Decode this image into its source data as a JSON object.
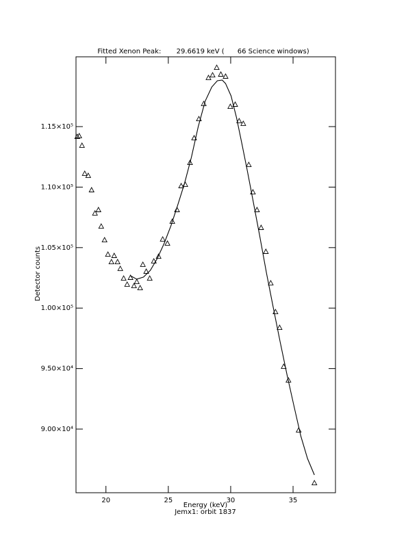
{
  "chart_data": {
    "type": "scatter",
    "title": "Fitted Xenon Peak:       29.6619 keV (      66 Science windows)",
    "x_label": "Energy (keV)",
    "subtitle": "Jemx1: orbit 1837",
    "y_label": "Detector counts",
    "xlim": [
      17.6,
      38.4
    ],
    "ylim": [
      84740,
      120770
    ],
    "xticks": [
      20,
      25,
      30,
      35
    ],
    "yticks": [
      {
        "value": 90000,
        "label": "9.00×10⁴"
      },
      {
        "value": 95000,
        "label": "9.50×10⁴"
      },
      {
        "value": 100000,
        "label": "1.00×10⁵"
      },
      {
        "value": 105000,
        "label": "1.05×10⁵"
      },
      {
        "value": 110000,
        "label": "1.10×10⁵"
      },
      {
        "value": 115000,
        "label": "1.15×10⁵"
      }
    ],
    "series": [
      {
        "type": "scatter",
        "marker": "triangle",
        "color": "#000000",
        "x": [
          17.7,
          17.86,
          18.08,
          18.3,
          18.58,
          18.85,
          19.12,
          19.4,
          19.62,
          19.89,
          20.16,
          20.44,
          20.66,
          20.93,
          21.15,
          21.42,
          21.7,
          21.97,
          22.25,
          22.47,
          22.74,
          22.96,
          23.23,
          23.51,
          23.84,
          24.22,
          24.55,
          24.93,
          25.32,
          25.7,
          26.03,
          26.36,
          26.74,
          27.07,
          27.45,
          27.84,
          28.22,
          28.55,
          28.88,
          29.21,
          29.59,
          29.97,
          30.36,
          30.68,
          31.01,
          31.45,
          31.78,
          32.11,
          32.44,
          32.82,
          33.21,
          33.59,
          33.92,
          34.25,
          34.63,
          35.45,
          36.71
        ],
        "values": [
          114150,
          114210,
          113420,
          111100,
          110930,
          109740,
          107820,
          108100,
          106740,
          105610,
          104420,
          103800,
          104310,
          103800,
          103240,
          102440,
          101940,
          102500,
          101820,
          102160,
          101650,
          103580,
          103010,
          102440,
          103860,
          104250,
          105670,
          105330,
          107140,
          108100,
          110080,
          110190,
          112000,
          114040,
          115620,
          116870,
          119020,
          119240,
          119860,
          119300,
          119130,
          116640,
          116810,
          115450,
          115230,
          111830,
          109570,
          108100,
          106630,
          104650,
          102050,
          99670,
          98370,
          95150,
          94020,
          89890,
          85530
        ]
      },
      {
        "type": "line",
        "color": "#000000",
        "x": [
          21.97,
          22.47,
          23.01,
          23.56,
          24.11,
          24.66,
          25.21,
          25.75,
          26.3,
          26.85,
          27.4,
          27.95,
          28.49,
          28.93,
          29.32,
          29.59,
          30.03,
          30.47,
          30.9,
          31.34,
          31.78,
          32.33,
          32.88,
          33.42,
          33.97,
          34.52,
          35.07,
          35.62,
          36.16,
          36.71
        ],
        "values": [
          102670,
          102390,
          102560,
          103120,
          104090,
          105330,
          106800,
          108500,
          110310,
          112460,
          115000,
          117090,
          118280,
          118790,
          118850,
          118560,
          117540,
          115730,
          113580,
          111320,
          108950,
          105950,
          102840,
          100010,
          97180,
          94470,
          91920,
          89430,
          87560,
          86210
        ]
      }
    ]
  }
}
